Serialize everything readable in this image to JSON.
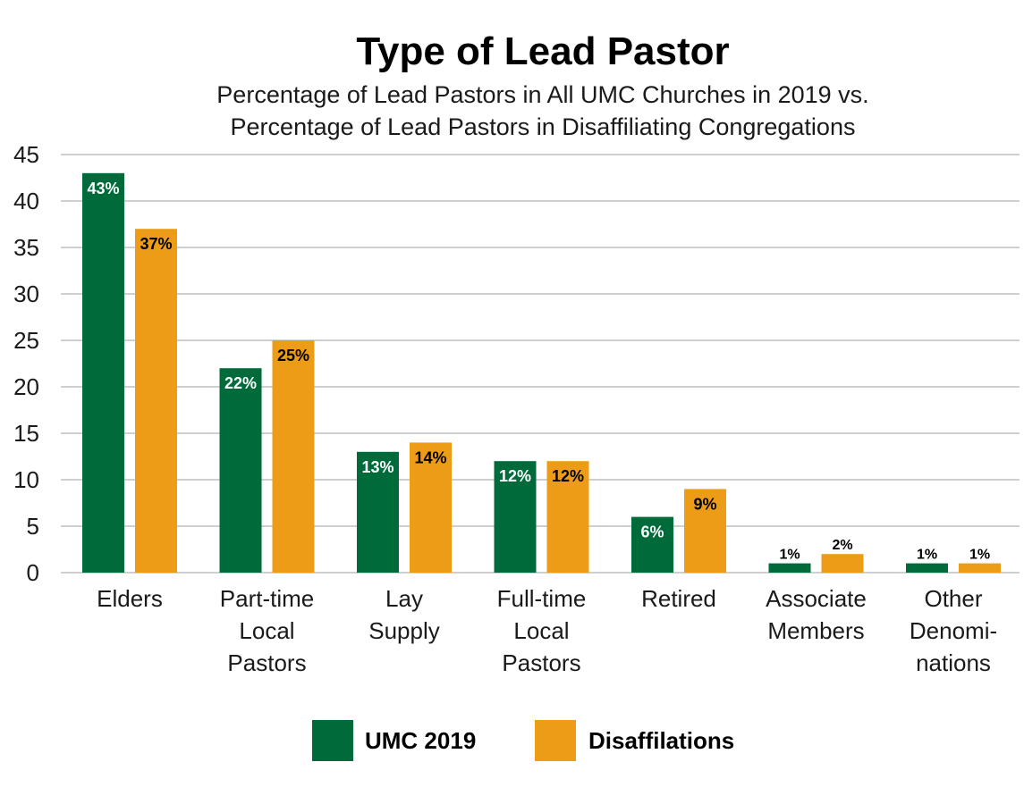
{
  "chart_data": {
    "type": "bar",
    "title": "Type of Lead Pastor",
    "subtitle_lines": [
      "Percentage of Lead Pastors in All UMC Churches in 2019 vs.",
      "Percentage of Lead Pastors in Disaffiliating Congregations"
    ],
    "categories": [
      [
        "Elders"
      ],
      [
        "Part-time",
        "Local",
        "Pastors"
      ],
      [
        "Lay",
        "Supply"
      ],
      [
        "Full-time",
        "Local",
        "Pastors"
      ],
      [
        "Retired"
      ],
      [
        "Associate",
        "Members"
      ],
      [
        "Other",
        "Denomi-",
        "nations"
      ]
    ],
    "series": [
      {
        "name": "UMC 2019",
        "color": "#006B3A",
        "label_color": "#ffffff",
        "values": [
          43,
          22,
          13,
          12,
          6,
          1,
          1
        ],
        "labels": [
          "43%",
          "22%",
          "13%",
          "12%",
          "6%",
          "1%",
          "1%"
        ]
      },
      {
        "name": "Disaffilations",
        "color": "#EC9C16",
        "label_color": "#000000",
        "values": [
          37,
          25,
          14,
          12,
          9,
          2,
          1
        ],
        "labels": [
          "37%",
          "25%",
          "14%",
          "12%",
          "9%",
          "2%",
          "1%"
        ]
      }
    ],
    "ylim": [
      0,
      45
    ],
    "yticks": [
      0,
      5,
      10,
      15,
      20,
      25,
      30,
      35,
      40,
      45
    ],
    "grid": true,
    "legend_position": "bottom",
    "xlabel": "",
    "ylabel": ""
  }
}
